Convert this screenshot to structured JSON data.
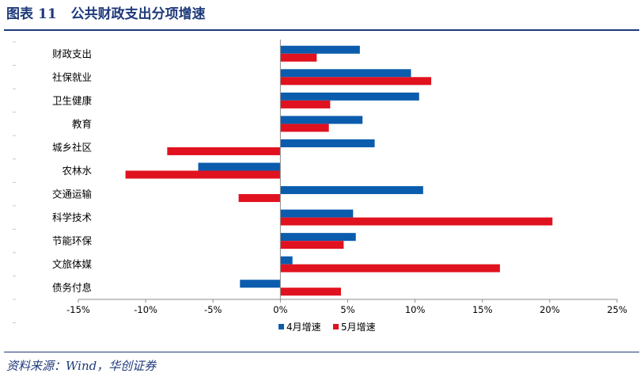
{
  "title": {
    "prefix": "图表",
    "number": "11",
    "text": "公共财政支出分项增速"
  },
  "source": "资料来源：Wind，华创证券",
  "colors": {
    "accent": "#1f3a7a",
    "series_1": "#0b5cad",
    "series_2": "#e0121f"
  },
  "chart_data": {
    "type": "bar",
    "orientation": "horizontal",
    "categories": [
      "财政支出",
      "社保就业",
      "卫生健康",
      "教育",
      "城乡社区",
      "农林水",
      "交通运输",
      "科学技术",
      "节能环保",
      "文旅体媒",
      "债务付息"
    ],
    "series": [
      {
        "name": "4月增速",
        "values": [
          5.9,
          9.7,
          10.3,
          6.1,
          7.0,
          -6.1,
          10.6,
          5.4,
          5.6,
          0.9,
          -3.0
        ]
      },
      {
        "name": "5月增速",
        "values": [
          2.7,
          11.2,
          3.7,
          3.6,
          -8.4,
          -11.5,
          -3.1,
          20.2,
          4.7,
          16.3,
          4.5
        ]
      }
    ],
    "xlim": [
      -15,
      25
    ],
    "xticks": [
      -15,
      -10,
      -5,
      0,
      5,
      10,
      15,
      20,
      25
    ],
    "xtick_labels": [
      "-15%",
      "-10%",
      "-5%",
      "0%",
      "5%",
      "10%",
      "15%",
      "20%",
      "25%"
    ],
    "legend_position": "bottom",
    "grid": false
  }
}
